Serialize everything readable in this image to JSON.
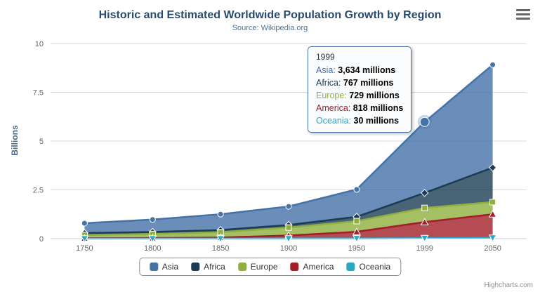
{
  "chart_data": {
    "type": "area",
    "stacking": "normal",
    "title": "Historic and Estimated Worldwide Population Growth by Region",
    "subtitle": "Source: Wikipedia.org",
    "categories": [
      "1750",
      "1800",
      "1850",
      "1900",
      "1950",
      "1999",
      "2050"
    ],
    "values_unit": "millions",
    "yaxis": {
      "title": "Billions",
      "min": 0,
      "max": 10,
      "ticks": [
        0,
        2.5,
        5,
        7.5,
        10
      ],
      "tick_labels": [
        "0",
        "2.5",
        "5",
        "7.5",
        "10"
      ]
    },
    "grid": true,
    "legend_position": "bottom",
    "series": [
      {
        "name": "Asia",
        "color": "#4572A7",
        "marker": "circle",
        "values": [
          502,
          635,
          809,
          947,
          1402,
          3634,
          5268
        ]
      },
      {
        "name": "Africa",
        "color": "#1C3C55",
        "marker": "diamond",
        "values": [
          106,
          107,
          111,
          133,
          221,
          767,
          1766
        ]
      },
      {
        "name": "Europe",
        "color": "#8FAF3E",
        "marker": "square",
        "values": [
          163,
          203,
          276,
          408,
          547,
          729,
          628
        ]
      },
      {
        "name": "America",
        "color": "#A21E28",
        "marker": "triangle",
        "values": [
          18,
          31,
          54,
          156,
          339,
          818,
          1201
        ]
      },
      {
        "name": "Oceania",
        "color": "#2BA7C4",
        "marker": "triangle-down",
        "values": [
          2,
          2,
          2,
          6,
          13,
          30,
          46
        ]
      }
    ],
    "hover": {
      "series": "Asia",
      "category": "1999",
      "category_index": 5
    }
  },
  "tooltip": {
    "header": "1999",
    "border_color": "#4572A7",
    "rows": [
      {
        "label": "Asia",
        "value": "3,634",
        "unit": "millions"
      },
      {
        "label": "Africa",
        "value": "767",
        "unit": "millions"
      },
      {
        "label": "Europe",
        "value": "729",
        "unit": "millions"
      },
      {
        "label": "America",
        "value": "818",
        "unit": "millions"
      },
      {
        "label": "Oceania",
        "value": "30",
        "unit": "millions"
      }
    ]
  },
  "credits": "Highcharts.com"
}
